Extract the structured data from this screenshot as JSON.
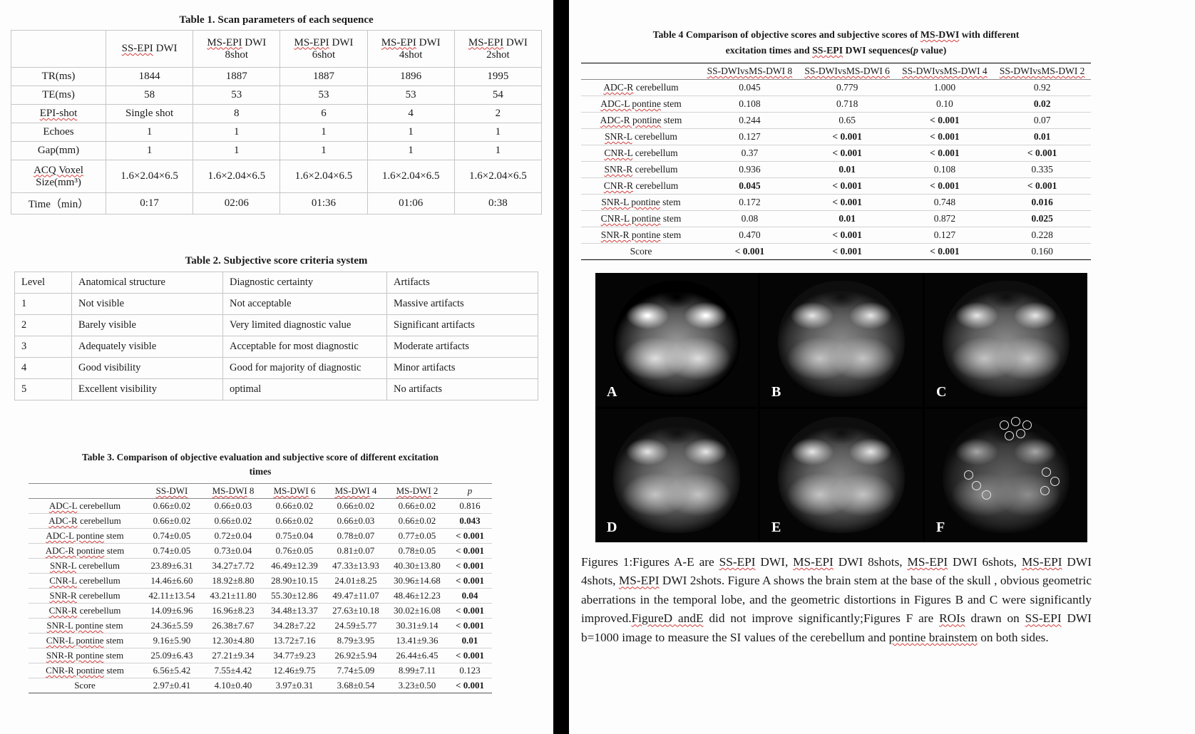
{
  "colors": {
    "wavy_underline": "#d43b3b",
    "divider": "#000000",
    "figure_background": "#000000"
  },
  "left": {
    "table1": {
      "title": "Table 1. Scan parameters of each sequence",
      "headers": [
        "",
        "~SS-EPI~ DWI",
        "~MS-EPI~ DWI\n8shot",
        "~MS-EPI~ DWI\n6shot",
        "~MS-EPI~ DWI\n4shot",
        "~MS-EPI~ DWI\n2shot"
      ],
      "rows": [
        [
          "TR(ms)",
          "1844",
          "1887",
          "1887",
          "1896",
          "1995"
        ],
        [
          "TE(ms)",
          "58",
          "53",
          "53",
          "53",
          "54"
        ],
        [
          "~EPI-shot~",
          "Single shot",
          "8",
          "6",
          "4",
          "2"
        ],
        [
          "Echoes",
          "1",
          "1",
          "1",
          "1",
          "1"
        ],
        [
          "Gap(mm)",
          "1",
          "1",
          "1",
          "1",
          "1"
        ],
        [
          "~ACQ Voxel~\nSize(mm³)",
          "1.6×2.04×6.5",
          "1.6×2.04×6.5",
          "1.6×2.04×6.5",
          "1.6×2.04×6.5",
          "1.6×2.04×6.5"
        ],
        [
          "Time（min）",
          "0:17",
          "02:06",
          "01:36",
          "01:06",
          "0:38"
        ]
      ]
    },
    "table2": {
      "title": "Table 2. Subjective score criteria system",
      "headers": [
        "Level",
        "Anatomical structure",
        "Diagnostic certainty",
        "Artifacts"
      ],
      "rows": [
        [
          "1",
          "Not visible",
          "Not acceptable",
          "Massive artifacts"
        ],
        [
          "2",
          "Barely visible",
          "Very limited diagnostic value",
          "Significant artifacts"
        ],
        [
          "3",
          "Adequately visible",
          "Acceptable for most diagnostic",
          "Moderate artifacts"
        ],
        [
          "4",
          "Good visibility",
          "Good for majority of diagnostic",
          "Minor artifacts"
        ],
        [
          "5",
          "Excellent visibility",
          "optimal",
          "No artifacts"
        ]
      ]
    },
    "table3": {
      "title_line1": "Table 3. Comparison of objective evaluation and subjective score of different excitation",
      "title_line2": "times",
      "headers": [
        "",
        "~SS-DWI~",
        "~MS-DWI~ 8",
        "~MS-DWI~ 6",
        "~MS-DWI~ 4",
        "~MS-DWI~ 2",
        "_p_"
      ],
      "rows": [
        [
          "~ADC-L~ cerebellum",
          "0.66±0.02",
          "0.66±0.03",
          "0.66±0.02",
          "0.66±0.02",
          "0.66±0.02",
          "0.816"
        ],
        [
          "~ADC-R~ cerebellum",
          "0.66±0.02",
          "0.66±0.02",
          "0.66±0.02",
          "0.66±0.03",
          "0.66±0.02",
          "**0.043**"
        ],
        [
          "~ADC-L pontine~ stem",
          "0.74±0.05",
          "0.72±0.04",
          "0.75±0.04",
          "0.78±0.07",
          "0.77±0.05",
          "**< 0.001**"
        ],
        [
          "~ADC-R pontine~ stem",
          "0.74±0.05",
          "0.73±0.04",
          "0.76±0.05",
          "0.81±0.07",
          "0.78±0.05",
          "**< 0.001**"
        ],
        [
          "~SNR-L~ cerebellum",
          "23.89±6.31",
          "34.27±7.72",
          "46.49±12.39",
          "47.33±13.93",
          "40.30±13.80",
          "**< 0.001**"
        ],
        [
          "~CNR-L~ cerebellum",
          "14.46±6.60",
          "18.92±8.80",
          "28.90±10.15",
          "24.01±8.25",
          "30.96±14.68",
          "**< 0.001**"
        ],
        [
          "~SNR-R~ cerebellum",
          "42.11±13.54",
          "43.21±11.80",
          "55.30±12.86",
          "49.47±11.07",
          "48.46±12.23",
          "**0.04**"
        ],
        [
          "~CNR-R~ cerebellum",
          "14.09±6.96",
          "16.96±8.23",
          "34.48±13.37",
          "27.63±10.18",
          "30.02±16.08",
          "**< 0.001**"
        ],
        [
          "~SNR-L pontine~ stem",
          "24.36±5.59",
          "26.38±7.67",
          "34.28±7.22",
          "24.59±5.77",
          "30.31±9.14",
          "**< 0.001**"
        ],
        [
          "~CNR-L pontine~ stem",
          "9.16±5.90",
          "12.30±4.80",
          "13.72±7.16",
          "8.79±3.95",
          "13.41±9.36",
          "**0.01**"
        ],
        [
          "~SNR-R pontine~ stem",
          "25.09±6.43",
          "27.21±9.34",
          "34.77±9.23",
          "26.92±5.94",
          "26.44±6.45",
          "**< 0.001**"
        ],
        [
          "~CNR-R pontine~ stem",
          "6.56±5.42",
          "7.55±4.42",
          "12.46±9.75",
          "7.74±5.09",
          "8.99±7.11",
          "0.123"
        ],
        [
          "Score",
          "2.97±0.41",
          "4.10±0.40",
          "3.97±0.31",
          "3.68±0.54",
          "3.23±0.50",
          "**< 0.001**"
        ]
      ]
    }
  },
  "right": {
    "table4": {
      "title_line1": "Table 4 Comparison of objective scores and subjective scores of ~MS-DWI~ with different",
      "title_line2": "excitation times and ~SS-EPI~ DWI sequences(_p_ value)",
      "headers": [
        "",
        "~SS-DWIvsMS-DWI 8~",
        "~SS-DWIvsMS-DWI 6~",
        "~SS-DWIvsMS-DWI 4~",
        "~SS-DWIvsMS-DWI 2~"
      ],
      "rows": [
        [
          "~ADC-R~ cerebellum",
          "0.045",
          "0.779",
          "1.000",
          "0.92"
        ],
        [
          "~ADC-L pontine~ stem",
          "0.108",
          "0.718",
          "0.10",
          "**0.02**"
        ],
        [
          "~ADC-R pontine~ stem",
          "0.244",
          "0.65",
          "**< 0.001**",
          "0.07"
        ],
        [
          "~SNR-L~ cerebellum",
          "0.127",
          "**< 0.001**",
          "**< 0.001**",
          "**0.01**"
        ],
        [
          "~CNR-L~ cerebellum",
          "0.37",
          "**< 0.001**",
          "**< 0.001**",
          "**< 0.001**"
        ],
        [
          "~SNR-R~ cerebellum",
          "0.936",
          "**0.01**",
          "0.108",
          "0.335"
        ],
        [
          "~CNR-R~ cerebellum",
          "**0.045**",
          "**< 0.001**",
          "**< 0.001**",
          "**< 0.001**"
        ],
        [
          "~SNR-L pontine~ stem",
          "0.172",
          "**< 0.001**",
          "0.748",
          "**0.016**"
        ],
        [
          "~CNR-L pontine~ stem",
          "0.08",
          "**0.01**",
          "0.872",
          "**0.025**"
        ],
        [
          "~SNR-R pontine~ stem",
          "0.470",
          "**< 0.001**",
          "0.127",
          "0.228"
        ],
        [
          "Score",
          "**< 0.001**",
          "**< 0.001**",
          "**< 0.001**",
          "0.160"
        ]
      ]
    },
    "figure_labels": [
      "A",
      "B",
      "C",
      "D",
      "E",
      "F"
    ],
    "caption": "Figures 1:Figures A-E are ~SS-EPI~ DWI, ~MS-EPI~ DWI 8shots, ~MS-EPI~ DWI 6shots, ~MS-EPI~ DWI 4shots, ~MS-EPI~ DWI 2shots. Figure A shows the brain stem at the base of the skull , obvious geometric aberrations in the temporal lobe, and the geometric distortions in Figures B and C were significantly improved.~FigureD andE~ did not improve significantly;Figures F are ~ROIs~ drawn on ~SS-EPI~ DWI b=1000 image to measure the SI values of the cerebellum and ~pontine brainstem~ on both sides."
  }
}
